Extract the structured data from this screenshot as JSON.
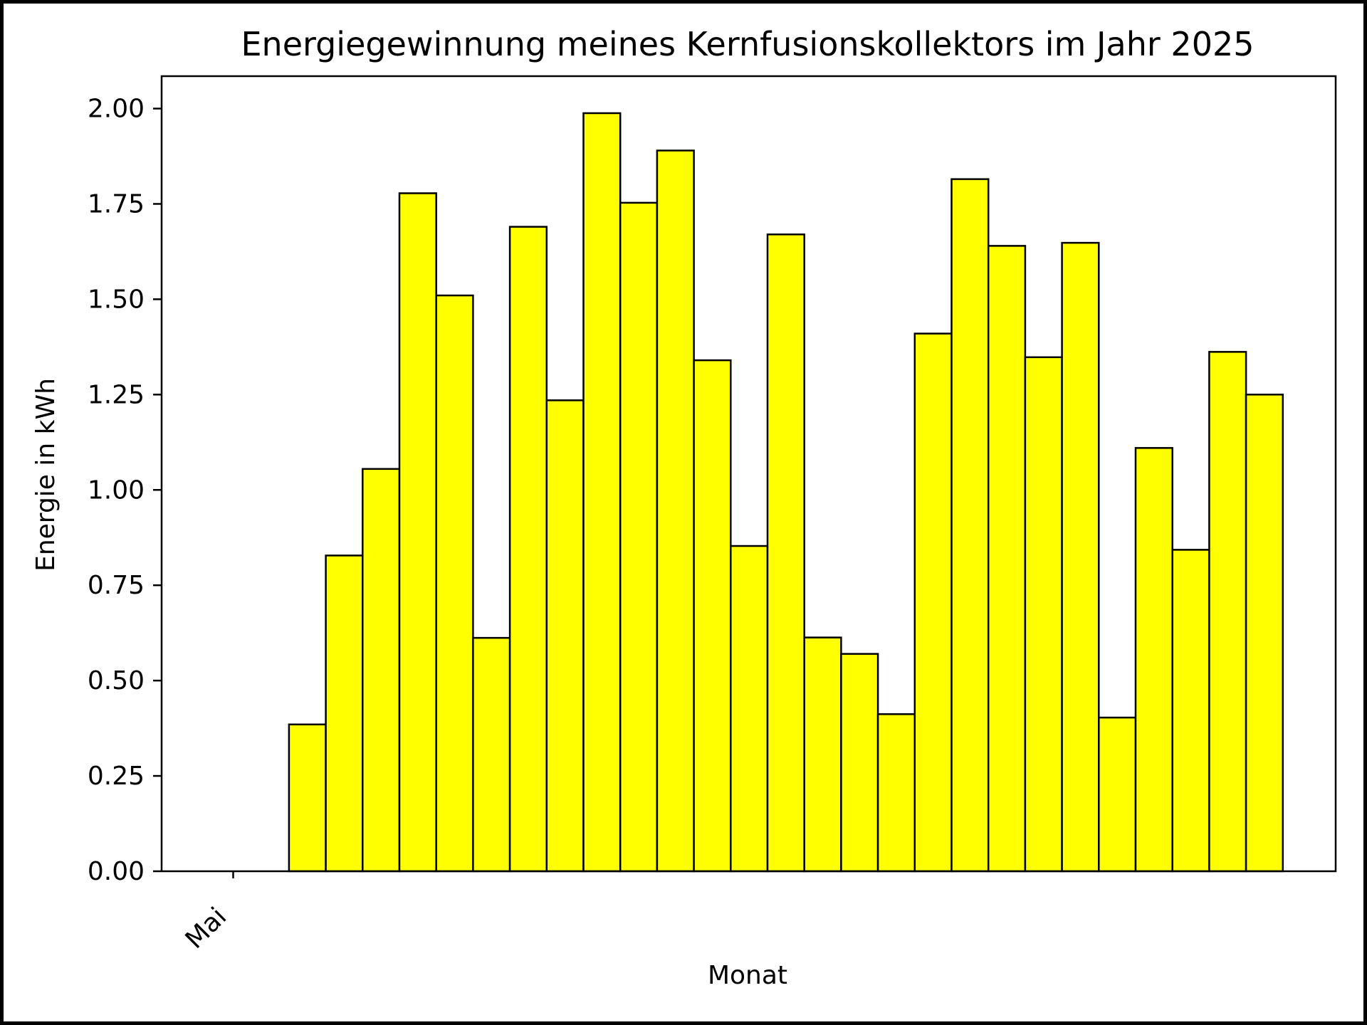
{
  "chart_data": {
    "type": "bar",
    "title": "Energiegewinnung meines Kernfusionskollektors im Jahr 2025",
    "xlabel": "Monat",
    "ylabel": "Energie in kWh",
    "ylim": [
      0,
      2.085
    ],
    "yticks": [
      "0.00",
      "0.25",
      "0.50",
      "0.75",
      "1.00",
      "1.25",
      "1.50",
      "1.75",
      "2.00"
    ],
    "xtick_label": "Mai",
    "values": [
      0.0,
      0.0,
      0.385,
      0.828,
      1.055,
      1.778,
      1.51,
      0.612,
      1.69,
      1.235,
      1.988,
      1.753,
      1.89,
      1.34,
      0.853,
      1.67,
      0.613,
      0.57,
      0.412,
      1.41,
      1.815,
      1.64,
      1.348,
      1.648,
      0.403,
      1.11,
      0.843,
      1.362,
      1.25
    ],
    "bar_color": "#ffff00",
    "edge_color": "#000000",
    "grid": false
  }
}
